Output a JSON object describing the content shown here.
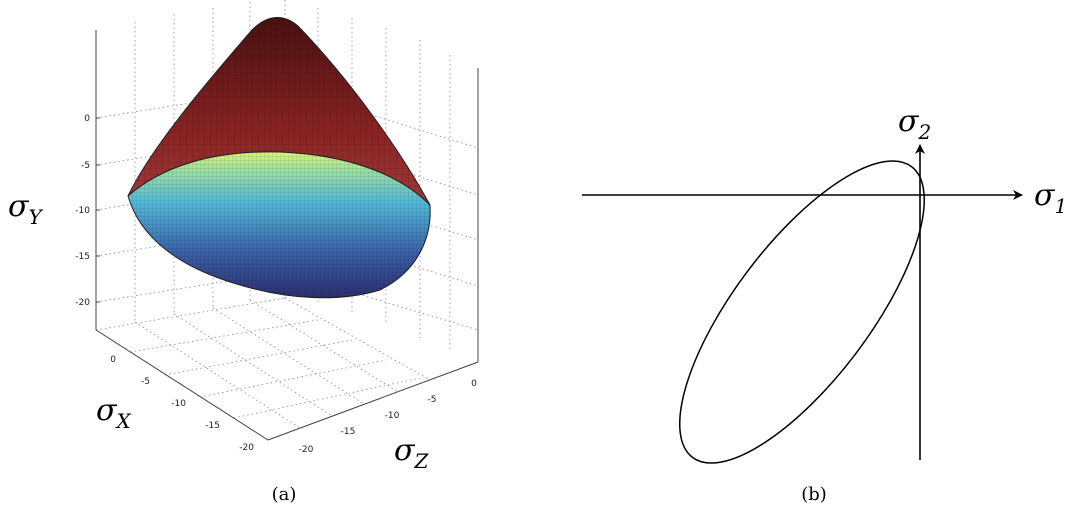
{
  "panel_a": {
    "y_axis": {
      "symbol": "σ",
      "subscript": "Y",
      "ticks": [
        "0",
        "-5",
        "-10",
        "-15",
        "-20"
      ]
    },
    "x_axis": {
      "symbol": "σ",
      "subscript": "X",
      "ticks": [
        "0",
        "-5",
        "-10",
        "-15",
        "-20"
      ]
    },
    "z_axis": {
      "symbol": "σ",
      "subscript": "Z",
      "ticks": [
        "0",
        "-5",
        "-10",
        "-15",
        "-20"
      ]
    },
    "caption": "(a)",
    "colors": {
      "top": "#6a1818",
      "mid": "#c8f08a",
      "side": "#4fb0d8",
      "bottom": "#2c3a78"
    }
  },
  "panel_b": {
    "axis1": {
      "symbol": "σ",
      "subscript": "1"
    },
    "axis2": {
      "symbol": "σ",
      "subscript": "2"
    },
    "caption": "(b)"
  }
}
